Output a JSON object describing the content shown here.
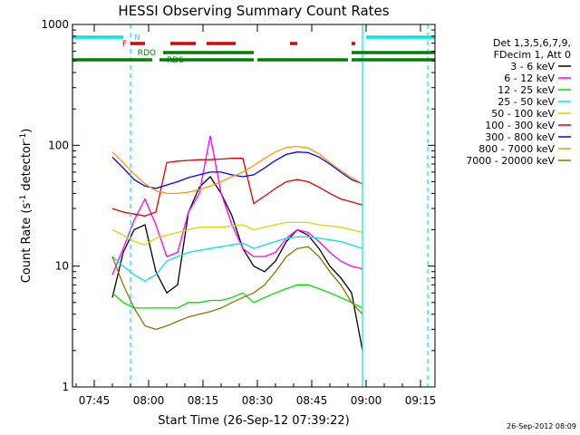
{
  "chart_data": {
    "type": "line",
    "title": "HESSI Observing Summary Count Rates",
    "xlabel": "Start Time (26-Sep-12 07:39:22)",
    "ylabel": "Count Rate (s",
    "ylabel_sup": "-1",
    "ylabel_tail": " detector",
    "ylabel_sup2": "-1",
    "ylabel_close": ")",
    "y_scale": "log",
    "ylim": [
      1,
      1000
    ],
    "xlim": [
      "07:39",
      "09:19"
    ],
    "x_ticks": [
      "07:45",
      "08:00",
      "08:15",
      "08:30",
      "08:45",
      "09:00",
      "09:15"
    ],
    "y_ticks": [
      "1",
      "10",
      "100",
      "1000"
    ],
    "grid": false,
    "legend_position": "right",
    "legend_header": [
      "Det 1,3,5,6,7,9,",
      "FDecim 1, Att 0"
    ],
    "timestamp": "26-Sep-2012 08:09",
    "state_bars": [
      {
        "label": "N",
        "color": "#00e5e5",
        "segments": [
          [
            "07:39",
            "07:53"
          ],
          [
            "09:00",
            "09:19"
          ]
        ]
      },
      {
        "label": "F",
        "color": "#e00000",
        "segments": [
          [
            "07:55",
            "07:59"
          ],
          [
            "08:06",
            "08:13"
          ],
          [
            "08:16",
            "08:24"
          ],
          [
            "08:39",
            "08:41"
          ],
          [
            "08:56",
            "08:57"
          ]
        ]
      },
      {
        "label": "RDO",
        "color": "#008000",
        "segments": [
          [
            "08:04",
            "08:29"
          ],
          [
            "08:56",
            "09:19"
          ]
        ]
      },
      {
        "label": "RD6",
        "color": "#008000",
        "segments": [
          [
            "07:39",
            "08:01"
          ],
          [
            "08:03",
            "08:29"
          ],
          [
            "08:30",
            "08:55"
          ],
          [
            "08:56",
            "09:19"
          ]
        ]
      }
    ],
    "vertical_lines": [
      {
        "time": "07:39",
        "style": "solid",
        "color": "#00e5e5"
      },
      {
        "time": "07:55",
        "style": "dashed",
        "color": "#00e5e5"
      },
      {
        "time": "08:59",
        "style": "solid",
        "color": "#00e5e5"
      },
      {
        "time": "09:17",
        "style": "dashed",
        "color": "#00e5e5"
      }
    ],
    "data_gaps": [
      [
        "07:39",
        "07:50"
      ],
      [
        "09:00",
        "09:19"
      ]
    ],
    "series": [
      {
        "name": "3 - 6 keV",
        "color": "#000000",
        "x": [
          "07:50",
          "07:53",
          "07:56",
          "07:59",
          "08:02",
          "08:05",
          "08:08",
          "08:11",
          "08:14",
          "08:17",
          "08:20",
          "08:23",
          "08:26",
          "08:29",
          "08:32",
          "08:35",
          "08:38",
          "08:41",
          "08:44",
          "08:47",
          "08:50",
          "08:53",
          "08:56",
          "08:59"
        ],
        "values": [
          5.5,
          13,
          20,
          22,
          9,
          6,
          7,
          28,
          45,
          55,
          40,
          26,
          14,
          10,
          9,
          11,
          16,
          20,
          18,
          14,
          10,
          8,
          6,
          2
        ]
      },
      {
        "name": "6 - 12 keV",
        "color": "#ff00ff",
        "x": [
          "07:50",
          "07:53",
          "07:56",
          "07:59",
          "08:02",
          "08:05",
          "08:08",
          "08:11",
          "08:14",
          "08:17",
          "08:20",
          "08:23",
          "08:26",
          "08:29",
          "08:32",
          "08:35",
          "08:38",
          "08:41",
          "08:44",
          "08:47",
          "08:50",
          "08:53",
          "08:56",
          "08:59"
        ],
        "values": [
          8.5,
          14,
          24,
          36,
          22,
          12,
          13,
          28,
          40,
          120,
          40,
          22,
          14,
          12,
          12,
          13,
          17,
          20,
          19,
          16,
          13,
          11,
          10,
          9.5
        ]
      },
      {
        "name": "12 - 25 keV",
        "color": "#00e000",
        "x": [
          "07:50",
          "07:53",
          "07:56",
          "07:59",
          "08:02",
          "08:05",
          "08:08",
          "08:11",
          "08:14",
          "08:17",
          "08:20",
          "08:23",
          "08:26",
          "08:29",
          "08:32",
          "08:35",
          "08:38",
          "08:41",
          "08:44",
          "08:47",
          "08:50",
          "08:53",
          "08:56",
          "08:59"
        ],
        "values": [
          6,
          5,
          4.5,
          4.5,
          4.5,
          4.5,
          4.5,
          5,
          5,
          5.2,
          5.2,
          5.5,
          6,
          5,
          5.5,
          6,
          6.5,
          7,
          7,
          6.5,
          6,
          5.5,
          5,
          4.5
        ]
      },
      {
        "name": "25 - 50 keV",
        "color": "#00e5e5",
        "x": [
          "07:50",
          "07:53",
          "07:56",
          "07:59",
          "08:02",
          "08:05",
          "08:08",
          "08:11",
          "08:14",
          "08:17",
          "08:20",
          "08:23",
          "08:26",
          "08:29",
          "08:32",
          "08:35",
          "08:38",
          "08:41",
          "08:44",
          "08:47",
          "08:50",
          "08:53",
          "08:56",
          "08:59"
        ],
        "values": [
          12,
          10,
          8.5,
          7.5,
          8.5,
          11,
          12,
          13,
          13.5,
          14,
          14.5,
          15,
          15.5,
          14,
          15,
          16,
          17,
          17.5,
          17.5,
          17,
          16.5,
          16,
          15,
          14
        ]
      },
      {
        "name": "50 - 100 keV",
        "color": "#d8d800",
        "x": [
          "07:50",
          "07:53",
          "07:56",
          "07:59",
          "08:02",
          "08:05",
          "08:08",
          "08:11",
          "08:14",
          "08:17",
          "08:20",
          "08:23",
          "08:26",
          "08:29",
          "08:32",
          "08:35",
          "08:38",
          "08:41",
          "08:44",
          "08:47",
          "08:50",
          "08:53",
          "08:56",
          "08:59"
        ],
        "values": [
          20,
          18,
          16,
          15,
          17,
          18,
          19,
          20,
          21,
          21,
          21,
          21.5,
          22,
          20,
          21,
          22,
          23,
          23,
          23,
          22,
          21.5,
          21,
          20,
          19
        ]
      },
      {
        "name": "100 - 300 keV",
        "color": "#e00000",
        "x": [
          "07:50",
          "07:53",
          "07:56",
          "07:59",
          "08:02",
          "08:05",
          "08:08",
          "08:11",
          "08:14",
          "08:17",
          "08:20",
          "08:23",
          "08:26",
          "08:29",
          "08:32",
          "08:35",
          "08:38",
          "08:41",
          "08:44",
          "08:47",
          "08:50",
          "08:53",
          "08:56",
          "08:59"
        ],
        "values": [
          30,
          28,
          27,
          26,
          28,
          72,
          74,
          75,
          76,
          76,
          77,
          78,
          78,
          33,
          38,
          44,
          50,
          52,
          50,
          45,
          40,
          36,
          34,
          32
        ]
      },
      {
        "name": "300 - 800 keV",
        "color": "#0000ff",
        "x": [
          "07:50",
          "07:53",
          "07:56",
          "07:59",
          "08:02",
          "08:05",
          "08:08",
          "08:11",
          "08:14",
          "08:17",
          "08:20",
          "08:23",
          "08:26",
          "08:29",
          "08:32",
          "08:35",
          "08:38",
          "08:41",
          "08:44",
          "08:47",
          "08:50",
          "08:53",
          "08:56",
          "08:59"
        ],
        "values": [
          80,
          65,
          52,
          46,
          44,
          47,
          50,
          54,
          57,
          60,
          60,
          57,
          55,
          57,
          65,
          75,
          84,
          88,
          87,
          80,
          70,
          60,
          52,
          48
        ]
      },
      {
        "name": "800 - 7000 keV",
        "color": "#ff9900",
        "x": [
          "07:50",
          "07:53",
          "07:56",
          "07:59",
          "08:02",
          "08:05",
          "08:08",
          "08:11",
          "08:14",
          "08:17",
          "08:20",
          "08:23",
          "08:26",
          "08:29",
          "08:32",
          "08:35",
          "08:38",
          "08:41",
          "08:44",
          "08:47",
          "08:50",
          "08:53",
          "08:56",
          "08:59"
        ],
        "values": [
          88,
          72,
          58,
          48,
          42,
          40,
          40,
          41,
          43,
          46,
          50,
          55,
          60,
          68,
          78,
          88,
          96,
          98,
          95,
          85,
          72,
          62,
          54,
          48
        ]
      },
      {
        "name": "7000 - 20000 keV",
        "color": "#8b7500",
        "x": [
          "07:50",
          "07:53",
          "07:56",
          "07:59",
          "08:02",
          "08:05",
          "08:08",
          "08:11",
          "08:14",
          "08:17",
          "08:20",
          "08:23",
          "08:26",
          "08:29",
          "08:32",
          "08:35",
          "08:38",
          "08:41",
          "08:44",
          "08:47",
          "08:50",
          "08:53",
          "08:56",
          "08:59"
        ],
        "values": [
          12,
          7,
          4.5,
          3.2,
          3,
          3.2,
          3.5,
          3.8,
          4,
          4.2,
          4.5,
          5,
          5.5,
          6,
          7,
          9,
          12,
          14,
          14.5,
          12,
          9,
          7,
          5,
          4
        ]
      }
    ]
  }
}
